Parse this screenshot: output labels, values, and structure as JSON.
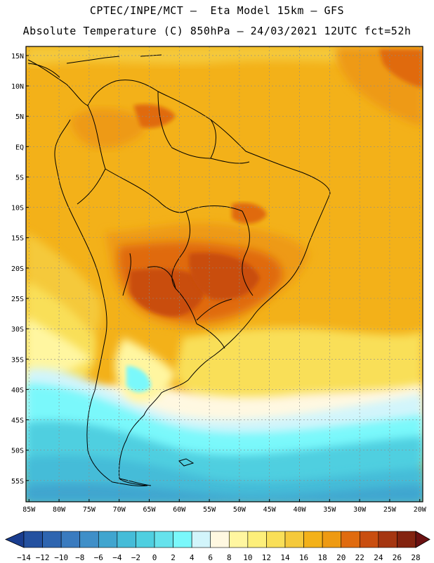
{
  "header": {
    "line1": "CPTEC/INPE/MCT –  Eta Model 15km – GFS",
    "line2": "Absolute Temperature (C) 850hPa – 24/03/2021 12UTC fct=52h"
  },
  "map": {
    "lat_labels": [
      "15N",
      "10N",
      "5N",
      "EQ",
      "5S",
      "10S",
      "15S",
      "20S",
      "25S",
      "30S",
      "35S",
      "40S",
      "45S",
      "50S",
      "55S"
    ],
    "lon_labels": [
      "85W",
      "80W",
      "75W",
      "70W",
      "65W",
      "60W",
      "55W",
      "50W",
      "45W",
      "40W",
      "35W",
      "30W",
      "25W",
      "20W"
    ],
    "grid": true,
    "lat_range": [
      -58,
      16
    ],
    "lon_range": [
      -85,
      -20
    ]
  },
  "colorbar": {
    "labels": [
      "-14",
      "-12",
      "-10",
      "-8",
      "-6",
      "-4",
      "-2",
      "0",
      "2",
      "4",
      "6",
      "8",
      "10",
      "12",
      "14",
      "16",
      "18",
      "20",
      "22",
      "24",
      "26",
      "28"
    ],
    "colors": [
      "#1a3d8f",
      "#2451a0",
      "#2e65b0",
      "#3a7bbf",
      "#3f8fc8",
      "#40a5cf",
      "#45bcd8",
      "#4fcfe0",
      "#66e2ec",
      "#7af8fb",
      "#d2f5fb",
      "#fff8e1",
      "#fff6a0",
      "#fdef7a",
      "#f9df58",
      "#f5c93b",
      "#f3b119",
      "#ee9a12",
      "#e06b0f",
      "#c94e10",
      "#a53611",
      "#83230f",
      "#6b1111"
    ]
  }
}
